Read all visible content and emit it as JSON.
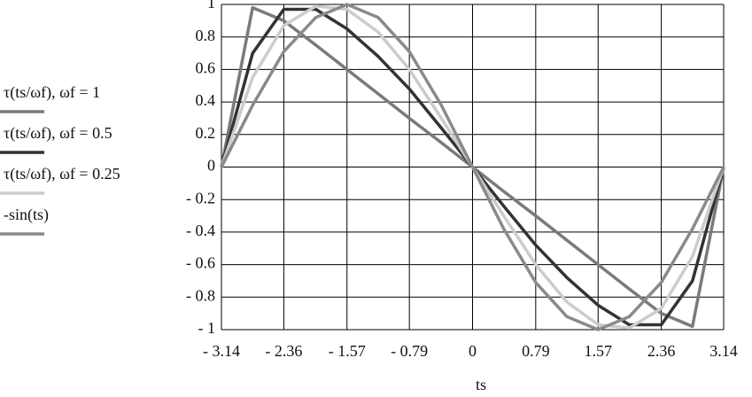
{
  "chart_data": {
    "type": "line",
    "x_label": "ts",
    "x": [
      -3.14,
      -2.75,
      -2.36,
      -1.96,
      -1.57,
      -1.18,
      -0.79,
      -0.39,
      0,
      0.39,
      0.79,
      1.18,
      1.57,
      1.96,
      2.36,
      2.75,
      3.14
    ],
    "series": [
      {
        "name": "τ(ts/ωf), ωf = 1",
        "color": "#7a7a7a",
        "values": [
          0,
          0.98,
          0.9,
          0.75,
          0.6,
          0.45,
          0.3,
          0.15,
          0,
          -0.15,
          -0.3,
          -0.45,
          -0.6,
          -0.75,
          -0.9,
          -0.98,
          0
        ]
      },
      {
        "name": "τ(ts/ωf), ωf = 0.5",
        "color": "#333333",
        "values": [
          0,
          0.7,
          0.97,
          0.97,
          0.85,
          0.68,
          0.48,
          0.24,
          0,
          -0.24,
          -0.48,
          -0.68,
          -0.85,
          -0.97,
          -0.97,
          -0.7,
          0
        ]
      },
      {
        "name": "τ(ts/ωf), ωf = 0.25",
        "color": "#cccccc",
        "values": [
          0,
          0.55,
          0.87,
          0.99,
          0.97,
          0.83,
          0.6,
          0.3,
          0,
          -0.3,
          -0.6,
          -0.83,
          -0.97,
          -0.99,
          -0.87,
          -0.55,
          0
        ]
      },
      {
        "name": "-sin(ts)",
        "color": "#8a8a8a",
        "values": [
          0,
          0.38,
          0.71,
          0.92,
          1,
          0.92,
          0.71,
          0.38,
          0,
          -0.38,
          -0.71,
          -0.92,
          -1,
          -0.92,
          -0.71,
          -0.38,
          0
        ]
      }
    ],
    "xlim": [
      -3.14,
      3.14
    ],
    "ylim": [
      -1,
      1
    ],
    "xticks": [
      {
        "value": -3.14,
        "label": "- 3.14"
      },
      {
        "value": -2.36,
        "label": "- 2.36"
      },
      {
        "value": -1.57,
        "label": "- 1.57"
      },
      {
        "value": -0.79,
        "label": "- 0.79"
      },
      0,
      0.79,
      1.57,
      2.36,
      3.14
    ],
    "yticks": [
      1,
      0.8,
      0.6,
      0.4,
      0.2,
      0,
      {
        "value": -0.2,
        "label": "- 0.2"
      },
      {
        "value": -0.4,
        "label": "- 0.4"
      },
      {
        "value": -0.6,
        "label": "- 0.6"
      },
      {
        "value": -0.8,
        "label": "- 0.8"
      },
      {
        "value": -1,
        "label": "- 1"
      }
    ],
    "grid": true
  }
}
